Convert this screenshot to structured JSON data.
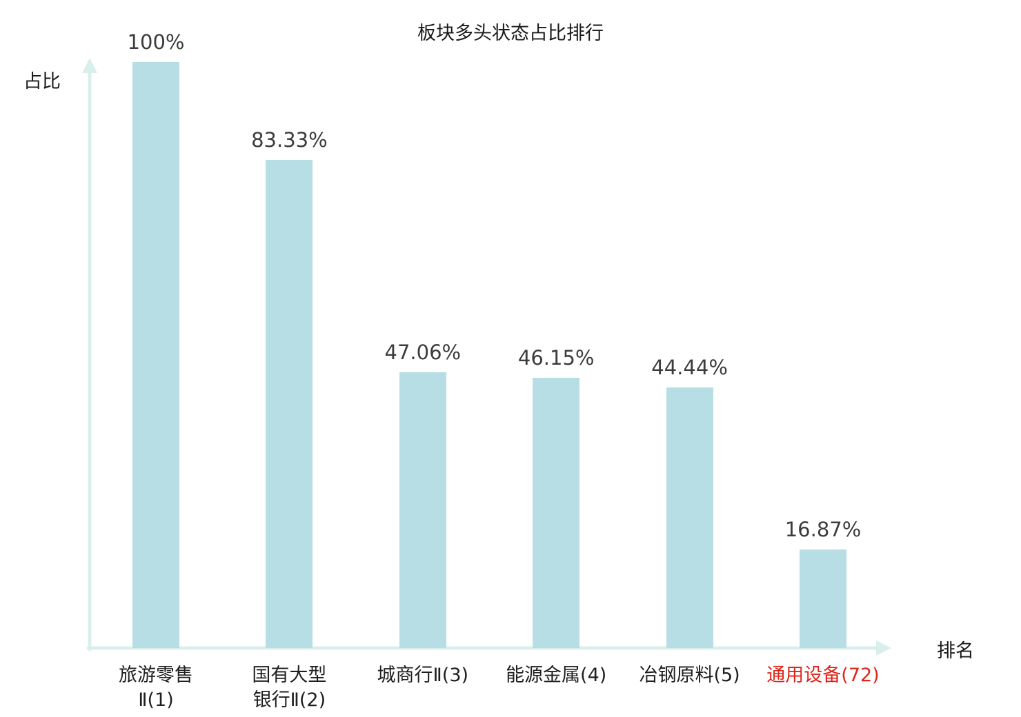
{
  "title": "板块多头状态占比排行",
  "chart_data": {
    "type": "bar",
    "title": "板块多头状态占比排行",
    "xlabel": "排名",
    "ylabel": "占比",
    "ylim": [
      0,
      100
    ],
    "grid": false,
    "legend": "none",
    "categories": [
      [
        "旅游零售",
        "Ⅱ(1)"
      ],
      [
        "国有大型",
        "银行Ⅱ(2)"
      ],
      [
        "城商行Ⅱ(3)"
      ],
      [
        "能源金属(4)"
      ],
      [
        "冶钢原料(5)"
      ],
      [
        "通用设备(72)"
      ]
    ],
    "values": [
      100,
      83.33,
      47.06,
      46.15,
      44.44,
      16.87
    ],
    "value_labels": [
      "100%",
      "83.33%",
      "47.06%",
      "46.15%",
      "44.44%",
      "16.87%"
    ],
    "bar_color": "#b7dee4",
    "axis_color": "#d8efec",
    "value_label_color": "#3c3c3c",
    "category_label_color": "#1f1f1f",
    "highlight_index": 5,
    "highlight_label_color": "#e02418"
  }
}
